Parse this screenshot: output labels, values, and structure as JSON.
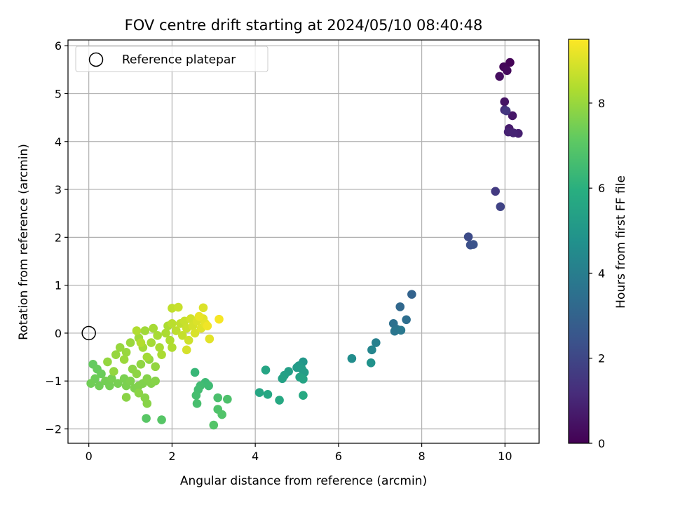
{
  "chart_data": {
    "type": "scatter",
    "title": "FOV centre drift starting at 2024/05/10 08:40:48",
    "xlabel": "Angular distance from reference (arcmin)",
    "ylabel": "Rotation from reference (arcmin)",
    "xlim": [
      -0.5,
      10.82
    ],
    "ylim": [
      -2.3,
      6.12
    ],
    "xticks": [
      0,
      2,
      4,
      6,
      8,
      10
    ],
    "yticks": [
      -2,
      -1,
      0,
      1,
      2,
      3,
      4,
      5,
      6
    ],
    "xtick_labels": [
      "0",
      "2",
      "4",
      "6",
      "8",
      "10"
    ],
    "ytick_labels": [
      "−2",
      "−1",
      "0",
      "1",
      "2",
      "3",
      "4",
      "5",
      "6"
    ],
    "grid": true,
    "colormap": "viridis",
    "colorbar": {
      "label": "Hours from first FF file",
      "range": [
        0,
        9.5
      ],
      "ticks": [
        0,
        2,
        4,
        6,
        8
      ],
      "tick_labels": [
        "0",
        "2",
        "4",
        "6",
        "8"
      ]
    },
    "legend": {
      "position": "top-left",
      "entries": [
        {
          "label": "Reference platepar",
          "marker": "open-circle",
          "color": "#000000"
        }
      ]
    },
    "reference": {
      "x": 0,
      "y": 0
    },
    "points": [
      {
        "x": 10.12,
        "y": 5.65,
        "h": 0.05
      },
      {
        "x": 9.97,
        "y": 5.56,
        "h": 0.15
      },
      {
        "x": 10.05,
        "y": 5.48,
        "h": 0.25
      },
      {
        "x": 9.87,
        "y": 5.36,
        "h": 0.35
      },
      {
        "x": 9.99,
        "y": 4.83,
        "h": 0.5
      },
      {
        "x": 10.18,
        "y": 4.54,
        "h": 0.6
      },
      {
        "x": 10.1,
        "y": 4.27,
        "h": 0.7
      },
      {
        "x": 10.32,
        "y": 4.17,
        "h": 0.85
      },
      {
        "x": 10.08,
        "y": 4.2,
        "h": 0.9
      },
      {
        "x": 10.2,
        "y": 4.18,
        "h": 0.95
      },
      {
        "x": 9.99,
        "y": 4.66,
        "h": 1.2
      },
      {
        "x": 10.03,
        "y": 4.64,
        "h": 1.5
      },
      {
        "x": 9.77,
        "y": 2.96,
        "h": 1.6
      },
      {
        "x": 9.89,
        "y": 2.64,
        "h": 1.9
      },
      {
        "x": 9.12,
        "y": 2.01,
        "h": 2.15
      },
      {
        "x": 9.17,
        "y": 1.84,
        "h": 2.3
      },
      {
        "x": 9.24,
        "y": 1.85,
        "h": 2.4
      },
      {
        "x": 7.76,
        "y": 0.81,
        "h": 3.0
      },
      {
        "x": 7.48,
        "y": 0.55,
        "h": 3.2
      },
      {
        "x": 7.63,
        "y": 0.28,
        "h": 3.4
      },
      {
        "x": 7.32,
        "y": 0.2,
        "h": 3.5
      },
      {
        "x": 7.4,
        "y": 0.08,
        "h": 3.6
      },
      {
        "x": 7.35,
        "y": 0.04,
        "h": 3.7
      },
      {
        "x": 7.5,
        "y": 0.06,
        "h": 3.8
      },
      {
        "x": 6.9,
        "y": -0.2,
        "h": 4.1
      },
      {
        "x": 6.8,
        "y": -0.35,
        "h": 4.3
      },
      {
        "x": 6.32,
        "y": -0.53,
        "h": 4.6
      },
      {
        "x": 6.78,
        "y": -0.62,
        "h": 4.8
      },
      {
        "x": 5.15,
        "y": -0.6,
        "h": 5.0
      },
      {
        "x": 5.05,
        "y": -0.68,
        "h": 5.1
      },
      {
        "x": 5.0,
        "y": -0.72,
        "h": 5.15
      },
      {
        "x": 5.12,
        "y": -0.75,
        "h": 5.2
      },
      {
        "x": 5.18,
        "y": -0.82,
        "h": 5.25
      },
      {
        "x": 4.8,
        "y": -0.8,
        "h": 5.3
      },
      {
        "x": 4.7,
        "y": -0.88,
        "h": 5.35
      },
      {
        "x": 4.65,
        "y": -0.95,
        "h": 5.4
      },
      {
        "x": 5.07,
        "y": -0.92,
        "h": 5.45
      },
      {
        "x": 5.15,
        "y": -0.96,
        "h": 5.5
      },
      {
        "x": 4.25,
        "y": -0.77,
        "h": 5.55
      },
      {
        "x": 4.1,
        "y": -1.24,
        "h": 5.6
      },
      {
        "x": 4.3,
        "y": -1.28,
        "h": 5.65
      },
      {
        "x": 4.58,
        "y": -1.4,
        "h": 5.7
      },
      {
        "x": 5.15,
        "y": -1.3,
        "h": 5.75
      },
      {
        "x": 2.55,
        "y": -0.82,
        "h": 6.3
      },
      {
        "x": 2.8,
        "y": -1.03,
        "h": 6.4
      },
      {
        "x": 2.88,
        "y": -1.1,
        "h": 6.45
      },
      {
        "x": 2.68,
        "y": -1.1,
        "h": 6.5
      },
      {
        "x": 2.63,
        "y": -1.18,
        "h": 6.55
      },
      {
        "x": 2.58,
        "y": -1.3,
        "h": 6.6
      },
      {
        "x": 2.6,
        "y": -1.47,
        "h": 6.65
      },
      {
        "x": 3.1,
        "y": -1.35,
        "h": 6.7
      },
      {
        "x": 3.33,
        "y": -1.38,
        "h": 6.75
      },
      {
        "x": 3.1,
        "y": -1.59,
        "h": 6.8
      },
      {
        "x": 3.2,
        "y": -1.7,
        "h": 6.85
      },
      {
        "x": 3.0,
        "y": -1.92,
        "h": 6.9
      },
      {
        "x": 1.75,
        "y": -1.81,
        "h": 6.95
      },
      {
        "x": 1.38,
        "y": -1.78,
        "h": 7.0
      },
      {
        "x": 0.1,
        "y": -0.65,
        "h": 7.2
      },
      {
        "x": 0.2,
        "y": -0.75,
        "h": 7.25
      },
      {
        "x": 0.3,
        "y": -0.85,
        "h": 7.3
      },
      {
        "x": 0.15,
        "y": -0.95,
        "h": 7.35
      },
      {
        "x": 0.05,
        "y": -1.05,
        "h": 7.4
      },
      {
        "x": 0.25,
        "y": -1.1,
        "h": 7.4
      },
      {
        "x": 0.4,
        "y": -1.0,
        "h": 7.45
      },
      {
        "x": 0.5,
        "y": -1.1,
        "h": 7.45
      },
      {
        "x": 0.55,
        "y": -0.95,
        "h": 7.5
      },
      {
        "x": 0.7,
        "y": -1.05,
        "h": 7.5
      },
      {
        "x": 0.85,
        "y": -0.95,
        "h": 7.55
      },
      {
        "x": 0.9,
        "y": -1.1,
        "h": 7.55
      },
      {
        "x": 1.0,
        "y": -1.0,
        "h": 7.6
      },
      {
        "x": 1.1,
        "y": -1.15,
        "h": 7.6
      },
      {
        "x": 1.2,
        "y": -1.1,
        "h": 7.65
      },
      {
        "x": 1.3,
        "y": -1.05,
        "h": 7.65
      },
      {
        "x": 1.4,
        "y": -0.95,
        "h": 7.7
      },
      {
        "x": 1.5,
        "y": -1.05,
        "h": 7.7
      },
      {
        "x": 1.6,
        "y": -1.0,
        "h": 7.72
      },
      {
        "x": 1.35,
        "y": -1.35,
        "h": 7.74
      },
      {
        "x": 1.4,
        "y": -1.47,
        "h": 7.76
      },
      {
        "x": 0.9,
        "y": -1.34,
        "h": 7.78
      },
      {
        "x": 1.2,
        "y": -1.25,
        "h": 7.8
      },
      {
        "x": 1.05,
        "y": -0.75,
        "h": 7.82
      },
      {
        "x": 1.15,
        "y": -0.85,
        "h": 7.84
      },
      {
        "x": 1.25,
        "y": -0.65,
        "h": 7.86
      },
      {
        "x": 1.45,
        "y": -0.55,
        "h": 7.88
      },
      {
        "x": 1.6,
        "y": -0.7,
        "h": 7.9
      },
      {
        "x": 0.6,
        "y": -0.8,
        "h": 7.92
      },
      {
        "x": 0.45,
        "y": -0.6,
        "h": 7.94
      },
      {
        "x": 0.65,
        "y": -0.45,
        "h": 7.96
      },
      {
        "x": 0.75,
        "y": -0.3,
        "h": 7.98
      },
      {
        "x": 0.9,
        "y": -0.4,
        "h": 8.0
      },
      {
        "x": 1.0,
        "y": -0.2,
        "h": 8.02
      },
      {
        "x": 0.85,
        "y": -0.55,
        "h": 8.04
      },
      {
        "x": 1.2,
        "y": -0.1,
        "h": 8.1
      },
      {
        "x": 1.35,
        "y": 0.05,
        "h": 8.12
      },
      {
        "x": 1.3,
        "y": -0.3,
        "h": 8.14
      },
      {
        "x": 1.4,
        "y": -0.5,
        "h": 8.16
      },
      {
        "x": 1.5,
        "y": -0.2,
        "h": 8.18
      },
      {
        "x": 1.55,
        "y": 0.1,
        "h": 8.2
      },
      {
        "x": 1.65,
        "y": -0.05,
        "h": 8.22
      },
      {
        "x": 1.7,
        "y": -0.3,
        "h": 8.24
      },
      {
        "x": 1.75,
        "y": -0.45,
        "h": 8.26
      },
      {
        "x": 1.85,
        "y": 0.0,
        "h": 8.28
      },
      {
        "x": 1.9,
        "y": 0.15,
        "h": 8.3
      },
      {
        "x": 1.95,
        "y": -0.15,
        "h": 8.32
      },
      {
        "x": 2.0,
        "y": -0.3,
        "h": 8.34
      },
      {
        "x": 1.15,
        "y": 0.05,
        "h": 8.36
      },
      {
        "x": 1.25,
        "y": -0.2,
        "h": 8.38
      },
      {
        "x": 2.0,
        "y": 0.2,
        "h": 8.5
      },
      {
        "x": 2.1,
        "y": 0.05,
        "h": 8.55
      },
      {
        "x": 2.2,
        "y": 0.2,
        "h": 8.6
      },
      {
        "x": 2.25,
        "y": -0.05,
        "h": 8.65
      },
      {
        "x": 2.3,
        "y": 0.25,
        "h": 8.7
      },
      {
        "x": 2.35,
        "y": 0.1,
        "h": 8.75
      },
      {
        "x": 2.4,
        "y": -0.15,
        "h": 8.8
      },
      {
        "x": 2.45,
        "y": 0.3,
        "h": 8.85
      },
      {
        "x": 2.5,
        "y": 0.15,
        "h": 8.9
      },
      {
        "x": 2.55,
        "y": 0.0,
        "h": 8.95
      },
      {
        "x": 2.6,
        "y": 0.25,
        "h": 9.0
      },
      {
        "x": 2.7,
        "y": 0.1,
        "h": 9.05
      },
      {
        "x": 2.75,
        "y": 0.3,
        "h": 9.1
      },
      {
        "x": 2.8,
        "y": 0.2,
        "h": 9.15
      },
      {
        "x": 2.65,
        "y": 0.35,
        "h": 9.2
      },
      {
        "x": 2.0,
        "y": 0.52,
        "h": 8.6
      },
      {
        "x": 2.15,
        "y": 0.54,
        "h": 8.7
      },
      {
        "x": 2.75,
        "y": 0.53,
        "h": 9.0
      },
      {
        "x": 2.9,
        "y": -0.12,
        "h": 9.1
      },
      {
        "x": 2.35,
        "y": -0.35,
        "h": 8.9
      },
      {
        "x": 3.13,
        "y": 0.29,
        "h": 9.4
      },
      {
        "x": 2.85,
        "y": 0.15,
        "h": 9.3
      }
    ]
  }
}
